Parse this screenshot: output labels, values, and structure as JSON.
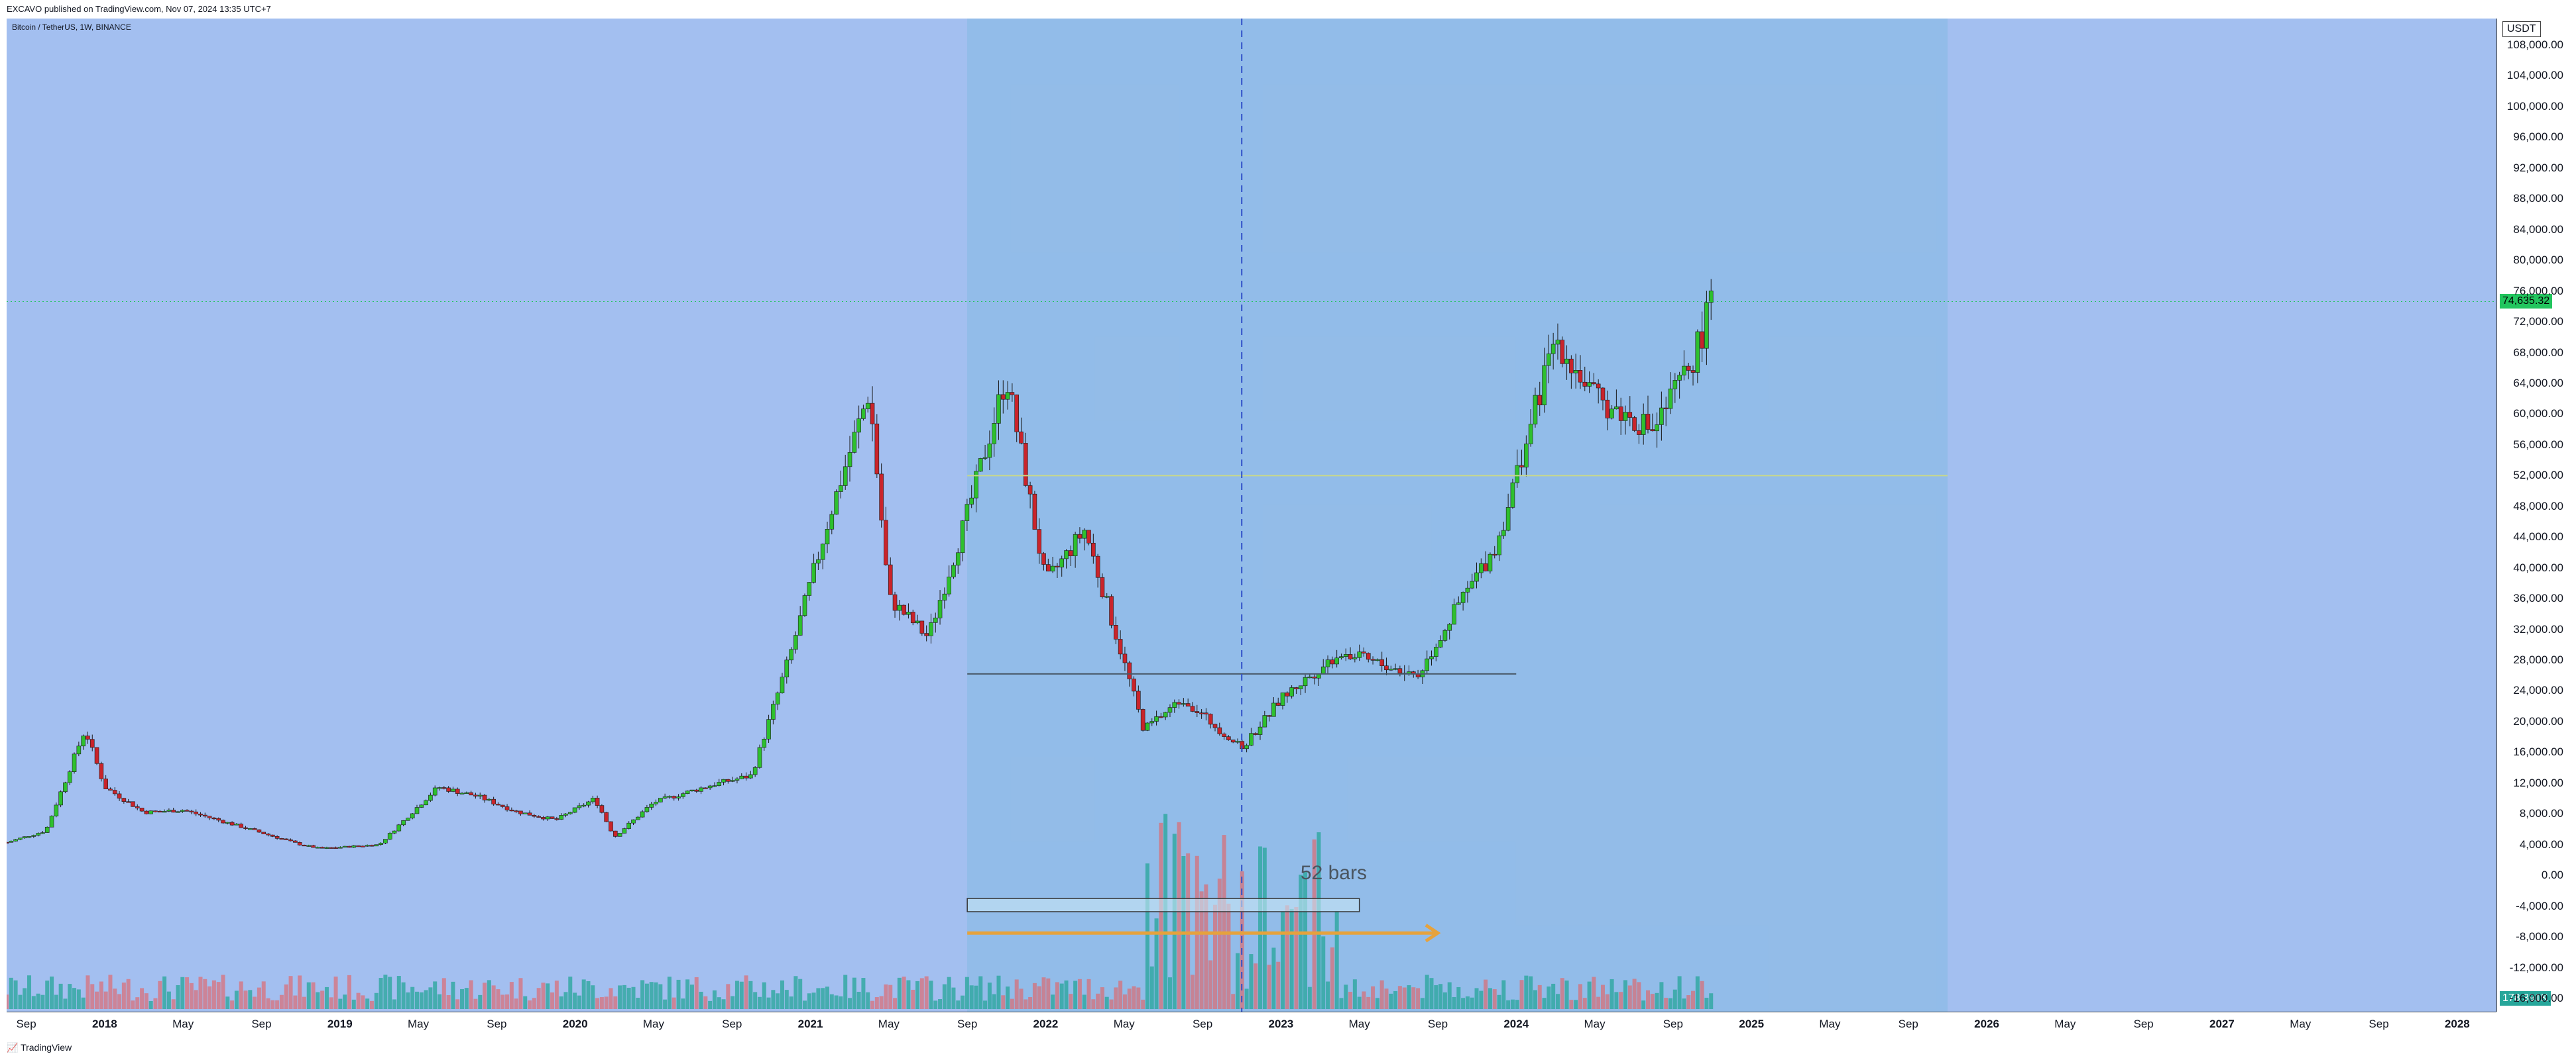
{
  "header": {
    "published": "EXCAVO published on TradingView.com, Nov 07, 2024 13:35 UTC+7"
  },
  "symbol": {
    "title": "Bitcoin / TetherUS, 1W, BINANCE"
  },
  "footer": {
    "brand": "TradingView"
  },
  "colors": {
    "background": "#a3bff0",
    "up": "#2ec02e",
    "down": "#c9242b",
    "accent_arrow": "#e6a23c",
    "price_tag": "#22c55e"
  },
  "axis": {
    "currency": "USDT",
    "price_label": "74,635.32",
    "volume_label": "178.391K",
    "y_ticks": [
      "108,000.00",
      "104,000.00",
      "100,000.00",
      "96,000.00",
      "92,000.00",
      "88,000.00",
      "84,000.00",
      "80,000.00",
      "76,000.00",
      "72,000.00",
      "68,000.00",
      "64,000.00",
      "60,000.00",
      "56,000.00",
      "52,000.00",
      "48,000.00",
      "44,000.00",
      "40,000.00",
      "36,000.00",
      "32,000.00",
      "28,000.00",
      "24,000.00",
      "20,000.00",
      "16,000.00",
      "12,000.00",
      "8,000.00",
      "4,000.00",
      "0.00",
      "-4,000.00",
      "-8,000.00",
      "-12,000.00",
      "-16,000.00"
    ],
    "x_ticks": [
      "Sep",
      "2018",
      "May",
      "Sep",
      "2019",
      "May",
      "Sep",
      "2020",
      "May",
      "Sep",
      "2021",
      "May",
      "Sep",
      "2022",
      "May",
      "Sep",
      "2023",
      "May",
      "Sep",
      "2024",
      "May",
      "Sep",
      "2025",
      "May",
      "Sep",
      "2026",
      "May",
      "Sep",
      "2027",
      "May",
      "Sep",
      "2028"
    ]
  },
  "annotations": {
    "bars_label": "52 bars"
  },
  "chart_data": {
    "type": "candlestick",
    "title": "Bitcoin / TetherUS, 1W, BINANCE",
    "interval": "1W",
    "ylim": [
      -16000,
      108000
    ],
    "x_range": [
      "2017-08",
      "2028-03"
    ],
    "current_price": 74635.32,
    "current_volume": "178.391K",
    "price_path": [
      [
        "2017-08",
        4300
      ],
      [
        "2017-10",
        5800
      ],
      [
        "2017-12",
        19000
      ],
      [
        "2018-01",
        11500
      ],
      [
        "2018-03",
        8200
      ],
      [
        "2018-05",
        8500
      ],
      [
        "2018-08",
        6300
      ],
      [
        "2018-11",
        4000
      ],
      [
        "2018-12",
        3500
      ],
      [
        "2019-03",
        4000
      ],
      [
        "2019-06",
        11500
      ],
      [
        "2019-08",
        10300
      ],
      [
        "2019-10",
        8300
      ],
      [
        "2019-12",
        7200
      ],
      [
        "2020-02",
        10000
      ],
      [
        "2020-03",
        5000
      ],
      [
        "2020-05",
        9500
      ],
      [
        "2020-08",
        11800
      ],
      [
        "2020-10",
        13000
      ],
      [
        "2020-12",
        29000
      ],
      [
        "2021-02",
        47000
      ],
      [
        "2021-04",
        63000
      ],
      [
        "2021-05",
        36000
      ],
      [
        "2021-07",
        31000
      ],
      [
        "2021-09",
        47000
      ],
      [
        "2021-11",
        65000
      ],
      [
        "2022-01",
        38000
      ],
      [
        "2022-03",
        45000
      ],
      [
        "2022-06",
        19000
      ],
      [
        "2022-08",
        23000
      ],
      [
        "2022-11",
        16500
      ],
      [
        "2023-01",
        23000
      ],
      [
        "2023-04",
        29000
      ],
      [
        "2023-08",
        26000
      ],
      [
        "2023-10",
        35000
      ],
      [
        "2023-12",
        43000
      ],
      [
        "2024-03",
        70000
      ],
      [
        "2024-05",
        62000
      ],
      [
        "2024-08",
        58000
      ],
      [
        "2024-10",
        67000
      ],
      [
        "2024-11",
        74635
      ]
    ],
    "horizontal_lines": [
      26200,
      52000
    ],
    "shaded_range": [
      "2021-09",
      "2025-11"
    ],
    "vertical_line": "2022-11"
  }
}
